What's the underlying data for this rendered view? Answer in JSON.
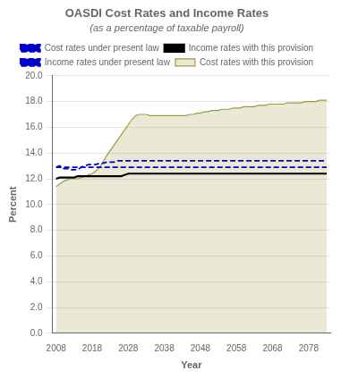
{
  "chart_data": {
    "type": "line",
    "title": "OASDI Cost Rates and Income Rates",
    "subtitle": "(as a percentage of taxable payroll)",
    "x_label": "Year",
    "y_label": "Percent",
    "x": [
      2008,
      2009,
      2010,
      2011,
      2012,
      2013,
      2014,
      2015,
      2016,
      2017,
      2018,
      2019,
      2020,
      2021,
      2022,
      2023,
      2024,
      2025,
      2026,
      2027,
      2028,
      2029,
      2030,
      2031,
      2032,
      2033,
      2034,
      2035,
      2036,
      2037,
      2038,
      2039,
      2040,
      2041,
      2042,
      2043,
      2044,
      2045,
      2046,
      2047,
      2048,
      2049,
      2050,
      2051,
      2052,
      2053,
      2054,
      2055,
      2056,
      2057,
      2058,
      2059,
      2060,
      2061,
      2062,
      2063,
      2064,
      2065,
      2066,
      2067,
      2068,
      2069,
      2070,
      2071,
      2072,
      2073,
      2074,
      2075,
      2076,
      2077,
      2078,
      2079,
      2080,
      2081,
      2082,
      2083
    ],
    "series": [
      {
        "name": "Cost rates with this provision",
        "type": "area",
        "color": "#9b9b40",
        "line_style": "solid",
        "values": [
          11.4,
          11.6,
          11.8,
          11.9,
          12.0,
          12.0,
          12.0,
          12.1,
          12.2,
          12.3,
          12.4,
          12.6,
          12.9,
          13.3,
          13.8,
          14.2,
          14.6,
          15.0,
          15.4,
          15.8,
          16.2,
          16.6,
          16.9,
          17.0,
          17.0,
          17.0,
          16.9,
          16.9,
          16.9,
          16.9,
          16.9,
          16.9,
          16.9,
          16.9,
          16.9,
          16.9,
          16.9,
          17.0,
          17.0,
          17.1,
          17.1,
          17.2,
          17.2,
          17.3,
          17.3,
          17.3,
          17.4,
          17.4,
          17.4,
          17.5,
          17.5,
          17.5,
          17.6,
          17.6,
          17.6,
          17.6,
          17.7,
          17.7,
          17.7,
          17.8,
          17.8,
          17.8,
          17.8,
          17.8,
          17.9,
          17.9,
          17.9,
          17.9,
          17.9,
          18.0,
          18.0,
          18.0,
          18.0,
          18.1,
          18.1,
          18.1
        ]
      },
      {
        "name": "Cost rates under present law",
        "type": "line",
        "color": "#0000cc",
        "line_style": "dashed",
        "values": [
          12.9,
          13.0,
          12.8,
          12.8,
          12.7,
          12.7,
          12.7,
          12.9,
          13.0,
          13.1,
          13.1,
          13.1,
          13.2,
          13.2,
          13.3,
          13.3,
          13.3,
          13.4,
          13.4,
          13.4,
          13.4,
          13.4,
          13.4,
          13.4,
          13.4,
          13.4,
          13.4,
          13.4,
          13.4,
          13.4,
          13.4,
          13.4,
          13.4,
          13.4,
          13.4,
          13.4,
          13.4,
          13.4,
          13.4,
          13.4,
          13.4,
          13.4,
          13.4,
          13.4,
          13.4,
          13.4,
          13.4,
          13.4,
          13.4,
          13.4,
          13.4,
          13.4,
          13.4,
          13.4,
          13.4,
          13.4,
          13.4,
          13.4,
          13.4,
          13.4,
          13.4,
          13.4,
          13.4,
          13.4,
          13.4,
          13.4,
          13.4,
          13.4,
          13.4,
          13.4,
          13.4,
          13.4,
          13.4,
          13.4,
          13.4,
          13.4
        ]
      },
      {
        "name": "Income rates with this provision",
        "type": "line",
        "color": "#000000",
        "line_style": "solid",
        "values": [
          12.0,
          12.1,
          12.1,
          12.1,
          12.1,
          12.1,
          12.2,
          12.2,
          12.2,
          12.2,
          12.2,
          12.2,
          12.2,
          12.2,
          12.2,
          12.2,
          12.2,
          12.2,
          12.2,
          12.3,
          12.4,
          12.4,
          12.4,
          12.4,
          12.4,
          12.4,
          12.4,
          12.4,
          12.4,
          12.4,
          12.4,
          12.4,
          12.4,
          12.4,
          12.4,
          12.4,
          12.4,
          12.4,
          12.4,
          12.4,
          12.4,
          12.4,
          12.4,
          12.4,
          12.4,
          12.4,
          12.4,
          12.4,
          12.4,
          12.4,
          12.4,
          12.4,
          12.4,
          12.4,
          12.4,
          12.4,
          12.4,
          12.4,
          12.4,
          12.4,
          12.4,
          12.4,
          12.4,
          12.4,
          12.4,
          12.4,
          12.4,
          12.4,
          12.4,
          12.4,
          12.4,
          12.4,
          12.4,
          12.4,
          12.4,
          12.4
        ]
      },
      {
        "name": "Income rates under present law",
        "type": "line",
        "color": "#0000cc",
        "line_style": "dashed",
        "values": [
          12.9,
          12.9,
          12.9,
          12.9,
          12.9,
          12.9,
          12.9,
          12.9,
          12.9,
          12.9,
          12.9,
          12.9,
          12.9,
          12.9,
          12.9,
          12.9,
          12.9,
          12.9,
          12.9,
          12.9,
          12.9,
          12.9,
          12.9,
          12.9,
          12.9,
          12.9,
          12.9,
          12.9,
          12.9,
          12.9,
          12.9,
          12.9,
          12.9,
          12.9,
          12.9,
          12.9,
          12.9,
          12.9,
          12.9,
          12.9,
          12.9,
          12.9,
          12.9,
          12.9,
          12.9,
          12.9,
          12.9,
          12.9,
          12.9,
          12.9,
          12.9,
          12.9,
          12.9,
          12.9,
          12.9,
          12.9,
          12.9,
          12.9,
          12.9,
          12.9,
          12.9,
          12.9,
          12.9,
          12.9,
          12.9,
          12.9,
          12.9,
          12.9,
          12.9,
          12.9,
          12.9,
          12.9,
          12.9,
          12.9,
          12.9,
          12.9
        ]
      }
    ],
    "xlim": [
      2007,
      2084
    ],
    "ylim": [
      0.0,
      20.0
    ],
    "xticks": [
      2008,
      2018,
      2028,
      2038,
      2048,
      2058,
      2068,
      2078
    ],
    "yticks": [
      {
        "value": 0,
        "label": "0.0"
      },
      {
        "value": 2,
        "label": "2.0"
      },
      {
        "value": 4,
        "label": "4.0"
      },
      {
        "value": 6,
        "label": "6.0"
      },
      {
        "value": 8,
        "label": "8.0"
      },
      {
        "value": 10,
        "label": "10.0"
      },
      {
        "value": 12,
        "label": "12.0"
      },
      {
        "value": 14,
        "label": "14.0"
      },
      {
        "value": 16,
        "label": "16.0"
      },
      {
        "value": 18,
        "label": "18.0"
      },
      {
        "value": 20,
        "label": "20.0"
      }
    ],
    "grid": "y",
    "legend": "top"
  }
}
